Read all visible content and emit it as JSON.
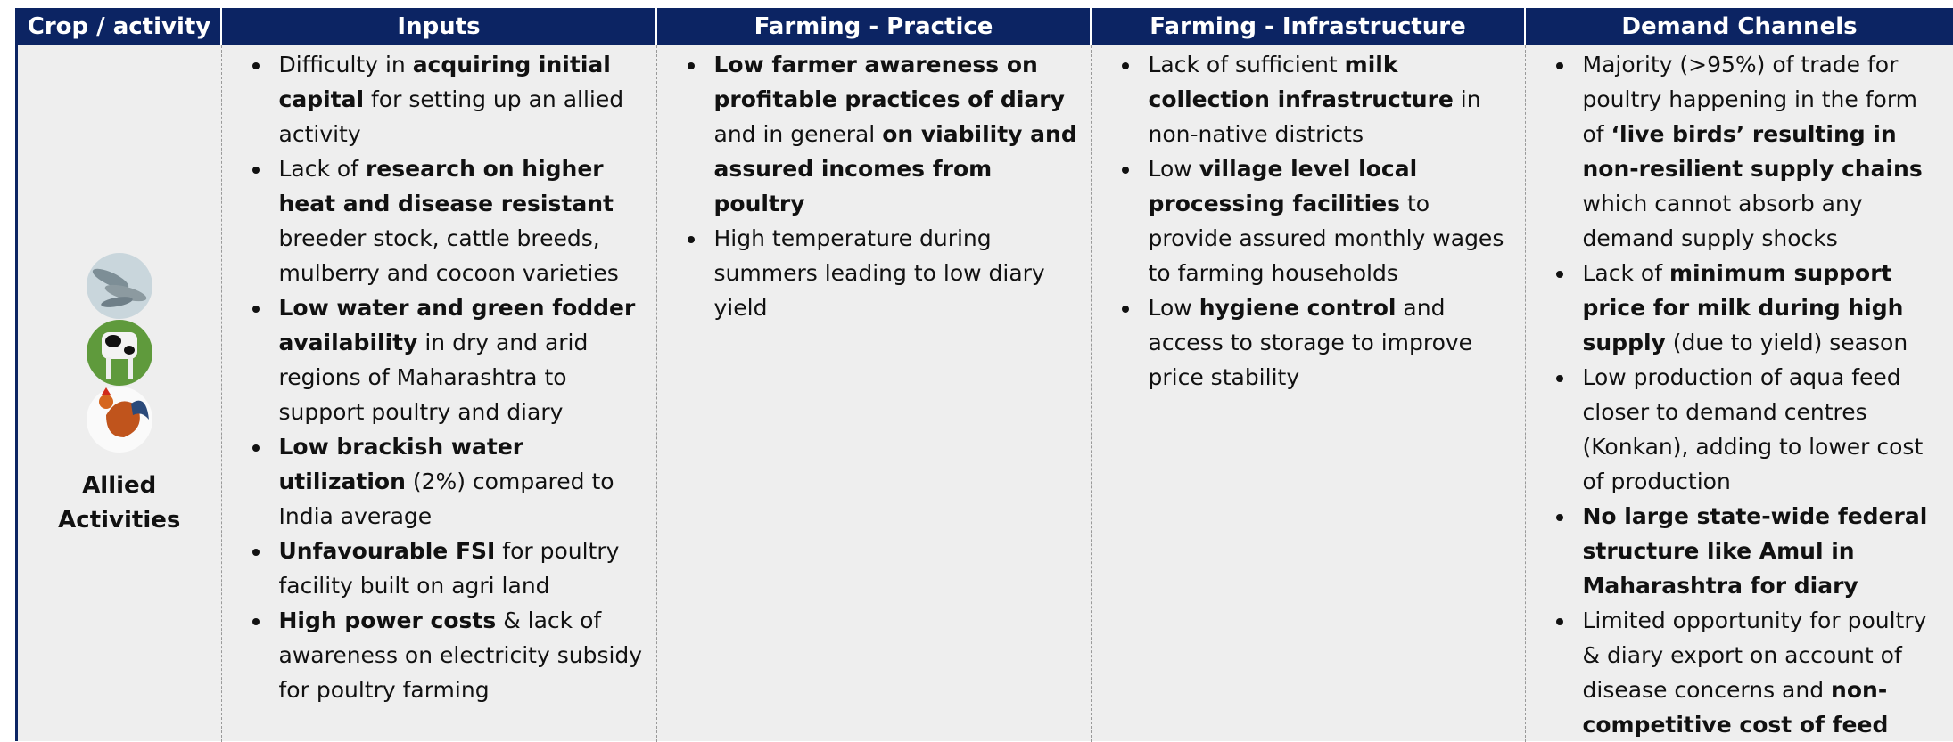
{
  "header": [
    "Crop / activity",
    "Inputs",
    "Farming - Practice",
    "Farming - Infrastructure",
    "Demand Channels"
  ],
  "crop_label": "Allied Activities",
  "columns": [
    [
      [
        {
          "text": "Difficulty in ",
          "bold": false
        },
        {
          "text": "acquiring initial capital",
          "bold": true
        },
        {
          "text": " for setting up an allied activity",
          "bold": false
        }
      ],
      [
        {
          "text": "Lack of ",
          "bold": false
        },
        {
          "text": "research on higher heat and disease resistant",
          "bold": true
        },
        {
          "text": " breeder stock, cattle breeds, mulberry and cocoon varieties",
          "bold": false
        }
      ],
      [
        {
          "text": "Low water and green fodder availability",
          "bold": true
        },
        {
          "text": " in dry and arid regions of Maharashtra to support poultry and diary",
          "bold": false
        }
      ],
      [
        {
          "text": "Low brackish water utilization",
          "bold": true
        },
        {
          "text": " (2%) compared to India average",
          "bold": false
        }
      ],
      [
        {
          "text": "Unfavourable FSI",
          "bold": true
        },
        {
          "text": " for poultry facility built on agri land",
          "bold": false
        }
      ],
      [
        {
          "text": "High power costs",
          "bold": true
        },
        {
          "text": " & lack of awareness on electricity subsidy for poultry farming",
          "bold": false
        }
      ]
    ],
    [
      [
        {
          "text": "Low farmer awareness on profitable practices of diary",
          "bold": true
        },
        {
          "text": " and in general ",
          "bold": false
        },
        {
          "text": "on viability and assured incomes from poultry",
          "bold": true
        }
      ],
      [
        {
          "text": "High temperature during summers leading to low diary yield",
          "bold": false
        }
      ]
    ],
    [
      [
        {
          "text": "Lack of sufficient ",
          "bold": false
        },
        {
          "text": "milk collection infrastructure",
          "bold": true
        },
        {
          "text": " in non-native districts",
          "bold": false
        }
      ],
      [
        {
          "text": "Low ",
          "bold": false
        },
        {
          "text": "village level local processing facilities",
          "bold": true
        },
        {
          "text": " to provide assured monthly wages to farming households",
          "bold": false
        }
      ],
      [
        {
          "text": "Low ",
          "bold": false
        },
        {
          "text": "hygiene control",
          "bold": true
        },
        {
          "text": " and access to storage to improve price stability",
          "bold": false
        }
      ]
    ],
    [
      [
        {
          "text": "Majority (>95%) of trade for poultry happening in the form of ",
          "bold": false
        },
        {
          "text": "‘live birds’ resulting in non-resilient supply chains",
          "bold": true
        },
        {
          "text": " which cannot absorb any demand supply shocks",
          "bold": false
        }
      ],
      [
        {
          "text": "Lack of ",
          "bold": false
        },
        {
          "text": "minimum support price for milk during high supply",
          "bold": true
        },
        {
          "text": " (due to yield) season",
          "bold": false
        }
      ],
      [
        {
          "text": "Low production of aqua feed closer to demand centres (Konkan), adding to lower cost of production",
          "bold": false
        }
      ],
      [
        {
          "text": "No large state-wide federal structure like Amul in Maharashtra for diary",
          "bold": true
        }
      ],
      [
        {
          "text": "Limited opportunity for poultry & diary export on account of disease concerns and ",
          "bold": false
        },
        {
          "text": "non-competitive cost of feed",
          "bold": true
        }
      ]
    ]
  ]
}
